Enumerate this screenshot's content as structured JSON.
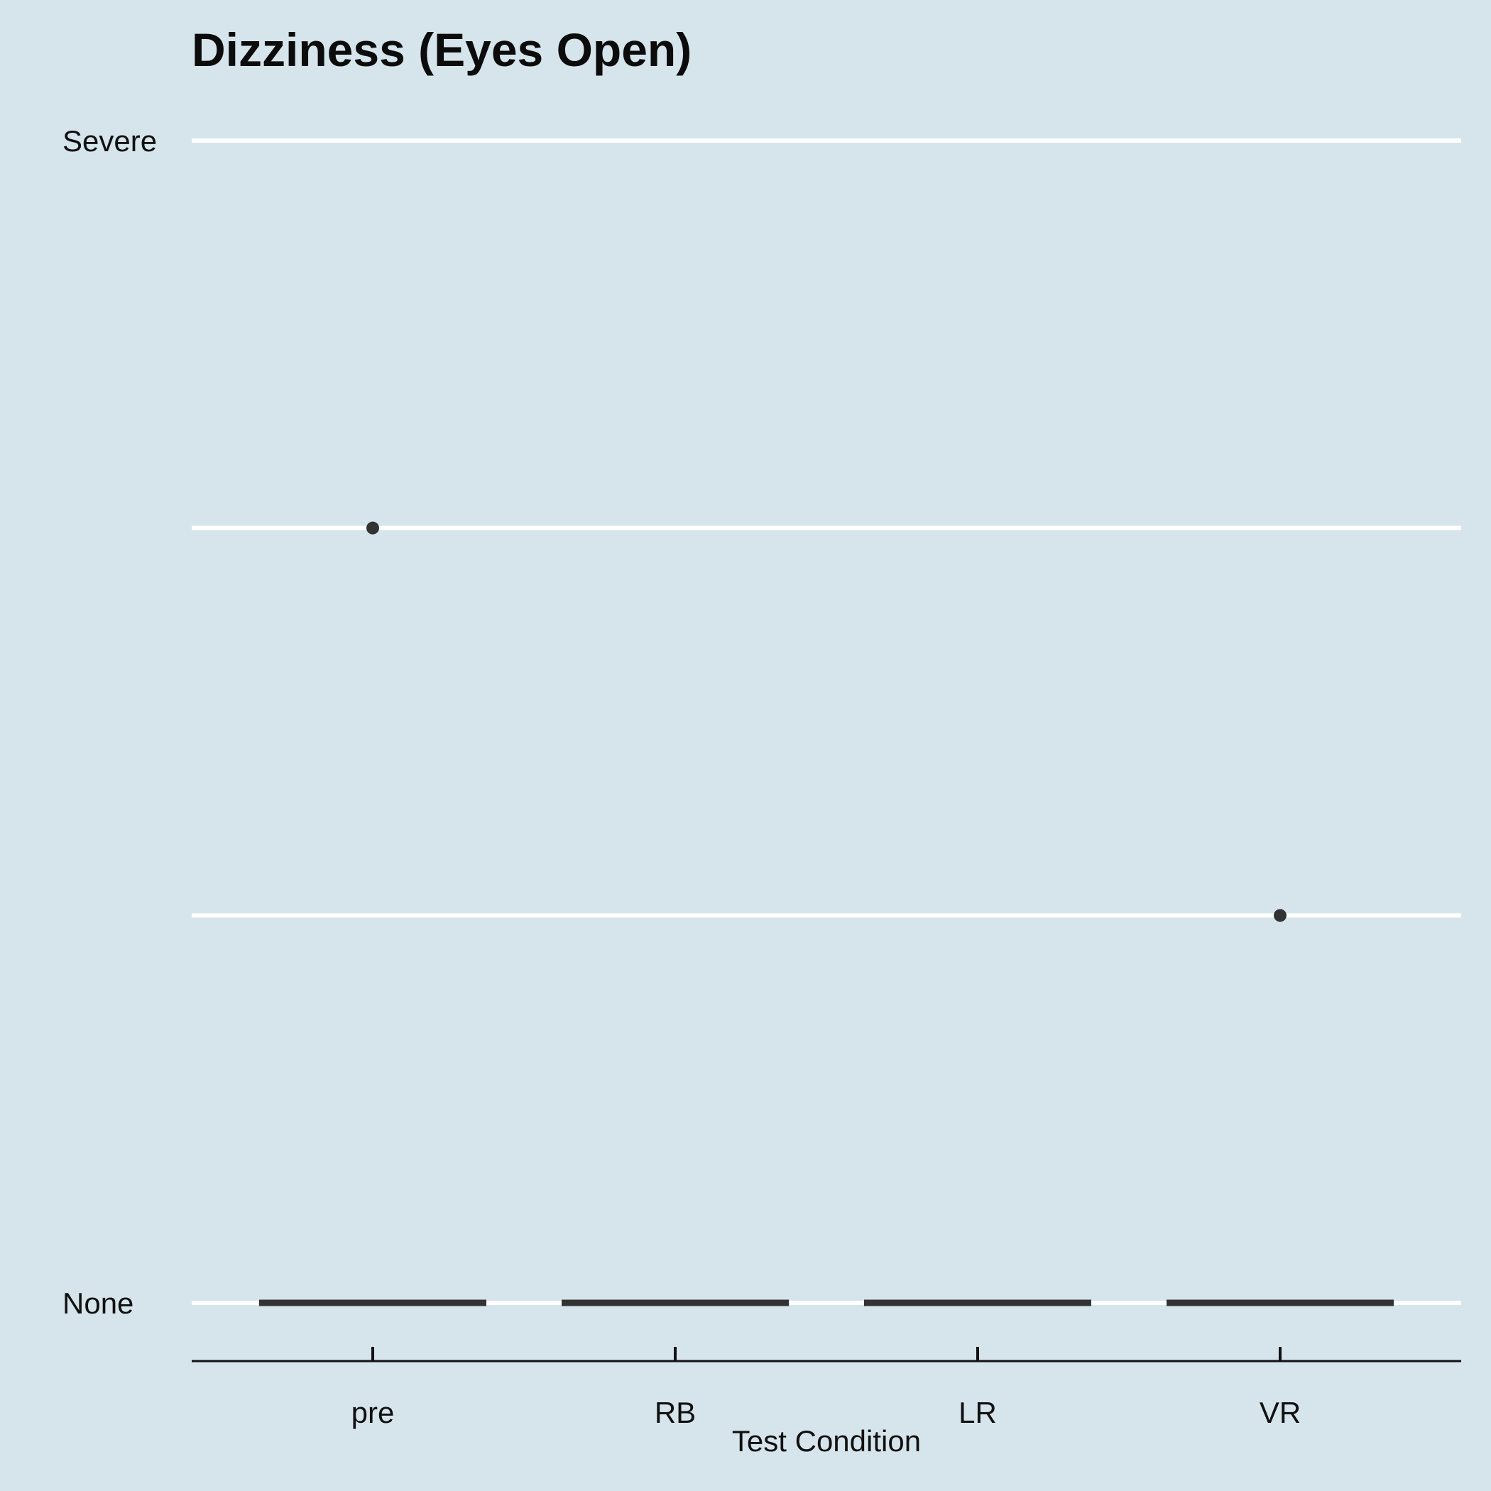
{
  "chart_data": {
    "type": "boxplot",
    "title": "Dizziness (Eyes Open)",
    "xlabel": "Test Condition",
    "ylabel": "",
    "categories": [
      "pre",
      "RB",
      "LR",
      "VR"
    ],
    "y_levels": [
      0,
      1,
      2,
      3
    ],
    "y_tick_labels": [
      {
        "value": 0,
        "label": "None"
      },
      {
        "value": 3,
        "label": "Severe"
      }
    ],
    "ylim": [
      -0.15,
      3.1
    ],
    "medians": [
      0,
      0,
      0,
      0
    ],
    "outliers": [
      {
        "category": "pre",
        "value": 2
      },
      {
        "category": "VR",
        "value": 1
      }
    ],
    "grid": true,
    "legend": "none",
    "colors": {
      "background": "#d6e5ec",
      "grid": "#ffffff",
      "marks": "#333333"
    }
  }
}
